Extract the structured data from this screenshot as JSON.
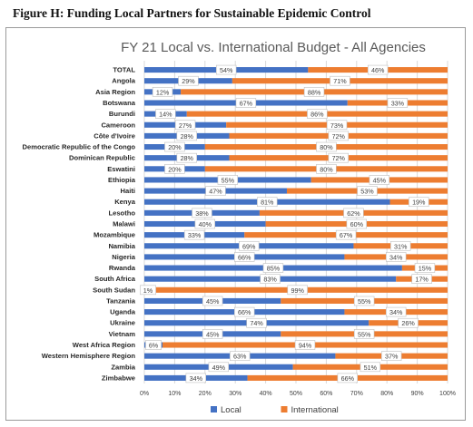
{
  "figure": {
    "caption": "Figure H: Funding Local Partners for Sustainable Epidemic Control"
  },
  "colors": {
    "local": "#4472c4",
    "international": "#ed7d31",
    "grid": "#d9d9d9",
    "text": "#404040"
  },
  "chart_data": {
    "type": "bar",
    "orientation": "horizontal",
    "stacked": true,
    "title": "FY 21 Local vs. International Budget - All Agencies",
    "categories": [
      "TOTAL",
      "Angola",
      "Asia Region",
      "Botswana",
      "Burundi",
      "Cameroon",
      "Côte d'Ivoire",
      "Democratic Republic of the Congo",
      "Dominican Republic",
      "Eswatini",
      "Ethiopia",
      "Haiti",
      "Kenya",
      "Lesotho",
      "Malawi",
      "Mozambique",
      "Namibia",
      "Nigeria",
      "Rwanda",
      "South Africa",
      "South Sudan",
      "Tanzania",
      "Uganda",
      "Ukraine",
      "Vietnam",
      "West Africa Region",
      "Western Hemisphere Region",
      "Zambia",
      "Zimbabwe"
    ],
    "series": [
      {
        "name": "Local",
        "values": [
          54,
          29,
          12,
          67,
          14,
          27,
          28,
          20,
          28,
          20,
          55,
          47,
          81,
          38,
          40,
          33,
          69,
          66,
          85,
          83,
          1,
          45,
          66,
          74,
          45,
          6,
          63,
          49,
          34
        ]
      },
      {
        "name": "International",
        "values": [
          46,
          71,
          88,
          33,
          86,
          73,
          72,
          80,
          72,
          80,
          45,
          53,
          19,
          62,
          60,
          67,
          31,
          34,
          15,
          17,
          99,
          55,
          34,
          26,
          55,
          94,
          37,
          51,
          66
        ]
      }
    ],
    "value_suffix": "%",
    "xlim": [
      0,
      100
    ],
    "xticks": [
      "0%",
      "10%",
      "20%",
      "30%",
      "40%",
      "50%",
      "60%",
      "70%",
      "80%",
      "90%",
      "100%"
    ],
    "grid": true,
    "legend": "bottom"
  }
}
